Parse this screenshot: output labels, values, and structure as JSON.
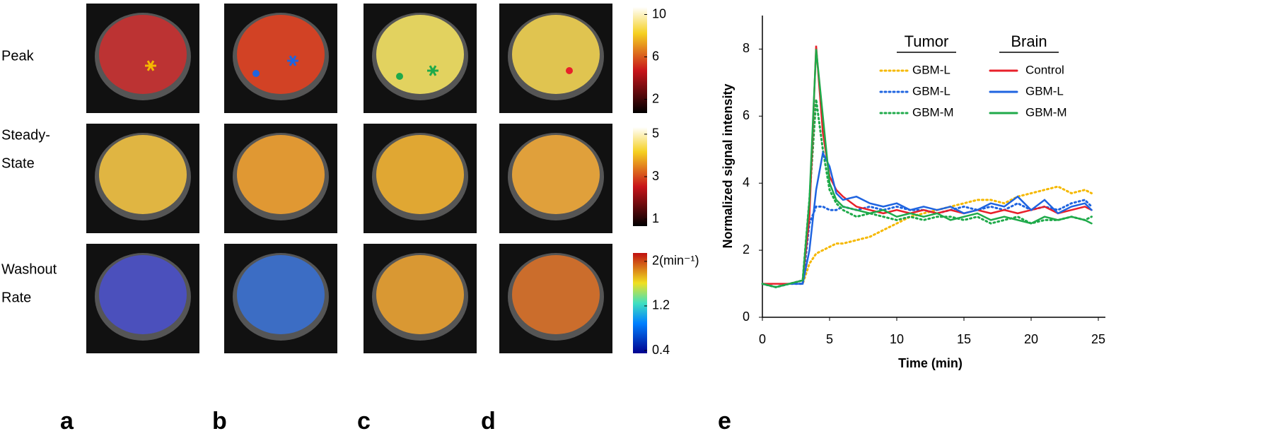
{
  "figure": {
    "rows": [
      [
        "Peak"
      ],
      [
        "Steady-",
        "State"
      ],
      [
        "Washout",
        "Rate"
      ]
    ],
    "panels": [
      "a",
      "b",
      "c",
      "d",
      "e"
    ],
    "colorbars": [
      {
        "lim": [
          0.7,
          10.7
        ],
        "ticks": [
          2,
          6,
          10
        ]
      },
      {
        "lim": [
          0.67,
          5.33
        ],
        "ticks": [
          1,
          3,
          5
        ]
      },
      {
        "lim": [
          0.35,
          2.15
        ],
        "ticks": [
          0.4,
          1.2,
          {
            "value": 2,
            "label": "2(min⁻¹)"
          }
        ]
      }
    ]
  },
  "chart_data": {
    "type": "line",
    "xlabel": "Time (min)",
    "ylabel": "Normalized  signal intensity",
    "legend_titles": [
      "Tumor",
      "Brain"
    ],
    "x": [
      0,
      1,
      2,
      3,
      3.5,
      4,
      4.5,
      5,
      5.5,
      6,
      7,
      8,
      9,
      10,
      11,
      12,
      13,
      14,
      15,
      16,
      17,
      18,
      19,
      20,
      21,
      22,
      23,
      24,
      24.5
    ],
    "xlim": [
      0,
      25
    ],
    "xticks": [
      0,
      5,
      10,
      15,
      20,
      25
    ],
    "ylim": [
      0,
      9
    ],
    "yticks": [
      0,
      2,
      4,
      6,
      8
    ],
    "grid": false,
    "series": [
      {
        "name": "GBM-L",
        "color": "#f5b800",
        "style": "dotted",
        "values": [
          1,
          0.9,
          1,
          1,
          1.6,
          1.9,
          2.0,
          2.1,
          2.2,
          2.2,
          2.3,
          2.4,
          2.6,
          2.8,
          3.0,
          3.1,
          3.2,
          3.3,
          3.4,
          3.5,
          3.5,
          3.4,
          3.6,
          3.7,
          3.8,
          3.9,
          3.7,
          3.8,
          3.7
        ]
      },
      {
        "name": "GBM-L",
        "color": "#1f64e0",
        "style": "dotted",
        "values": [
          1,
          0.9,
          1,
          1,
          2.8,
          3.3,
          3.3,
          3.2,
          3.2,
          3.3,
          3.2,
          3.3,
          3.2,
          3.3,
          3.2,
          3.2,
          3.1,
          3.2,
          3.3,
          3.2,
          3.3,
          3.2,
          3.4,
          3.2,
          3.3,
          3.2,
          3.4,
          3.5,
          3.3
        ]
      },
      {
        "name": "GBM-M",
        "color": "#1faa4a",
        "style": "dotted",
        "values": [
          1,
          0.9,
          1,
          1.1,
          3.5,
          6.5,
          5.0,
          3.8,
          3.4,
          3.2,
          3.0,
          3.1,
          3.0,
          2.9,
          3.0,
          2.9,
          3.0,
          3.0,
          2.9,
          3.0,
          2.8,
          2.9,
          3.0,
          2.8,
          2.9,
          2.9,
          3.0,
          2.9,
          3.0
        ]
      },
      {
        "name": "Control",
        "color": "#e8202a",
        "style": "solid",
        "values": [
          1,
          1,
          1,
          1.1,
          3,
          8.1,
          5.5,
          4.2,
          3.8,
          3.6,
          3.3,
          3.2,
          3.1,
          3.2,
          3.1,
          3.2,
          3.1,
          3.2,
          3.1,
          3.2,
          3.1,
          3.2,
          3.1,
          3.2,
          3.3,
          3.1,
          3.2,
          3.3,
          3.2
        ]
      },
      {
        "name": "GBM-L",
        "color": "#1f64e0",
        "style": "solid",
        "values": [
          1,
          0.9,
          1,
          1,
          2,
          3.8,
          4.9,
          4.5,
          3.7,
          3.5,
          3.6,
          3.4,
          3.3,
          3.4,
          3.2,
          3.3,
          3.2,
          3.3,
          3.1,
          3.2,
          3.4,
          3.3,
          3.6,
          3.2,
          3.5,
          3.1,
          3.3,
          3.4,
          3.2
        ]
      },
      {
        "name": "GBM-M",
        "color": "#1faa4a",
        "style": "solid",
        "values": [
          1,
          0.9,
          1,
          1.1,
          3.5,
          8.0,
          6.0,
          4.0,
          3.5,
          3.3,
          3.2,
          3.1,
          3.2,
          3.0,
          3.1,
          3.0,
          3.1,
          2.9,
          3.0,
          3.1,
          2.9,
          3.0,
          2.9,
          2.8,
          3.0,
          2.9,
          3.0,
          2.9,
          2.8
        ]
      }
    ]
  }
}
